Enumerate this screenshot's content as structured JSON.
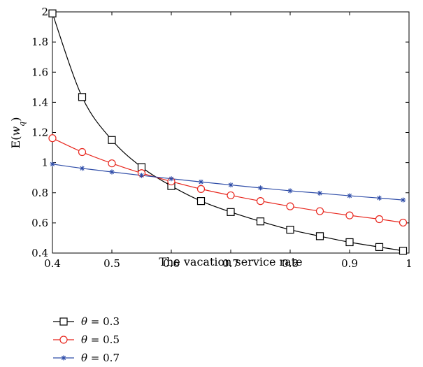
{
  "chart_data": {
    "type": "line",
    "title": "",
    "xlabel": "The vacation service rate",
    "ylabel": "E(w_q)",
    "ylabel_parts": {
      "base": "E(",
      "w": "w",
      "sub": "q",
      "close": ")"
    },
    "xlim": [
      0.4,
      1.0
    ],
    "ylim": [
      0.4,
      2.0
    ],
    "xticks": [
      0.4,
      0.5,
      0.6,
      0.7,
      0.8,
      0.9,
      1
    ],
    "yticks": [
      0.4,
      0.6,
      0.8,
      1,
      1.2,
      1.4,
      1.6,
      1.8,
      2
    ],
    "x": [
      0.4,
      0.45,
      0.5,
      0.55,
      0.6,
      0.65,
      0.7,
      0.75,
      0.8,
      0.85,
      0.9,
      0.95,
      0.99
    ],
    "series": [
      {
        "name": "θ = 0.3",
        "theta": "0.3",
        "color": "#000000",
        "marker": "square",
        "values": [
          1.99,
          1.435,
          1.15,
          0.97,
          0.845,
          0.745,
          0.672,
          0.61,
          0.555,
          0.512,
          0.472,
          0.44,
          0.415
        ]
      },
      {
        "name": "θ = 0.5",
        "theta": "0.5",
        "color": "#e8261d",
        "marker": "circle",
        "values": [
          1.162,
          1.07,
          0.995,
          0.93,
          0.875,
          0.825,
          0.783,
          0.745,
          0.71,
          0.678,
          0.65,
          0.625,
          0.602
        ]
      },
      {
        "name": "θ = 0.7",
        "theta": "0.7",
        "color": "#2f4da8",
        "marker": "star",
        "values": [
          0.99,
          0.962,
          0.938,
          0.915,
          0.893,
          0.872,
          0.852,
          0.832,
          0.813,
          0.797,
          0.78,
          0.765,
          0.752
        ]
      }
    ],
    "grid": false,
    "legend": "below",
    "legend_symbol": "θ",
    "legend_eq": "= "
  }
}
